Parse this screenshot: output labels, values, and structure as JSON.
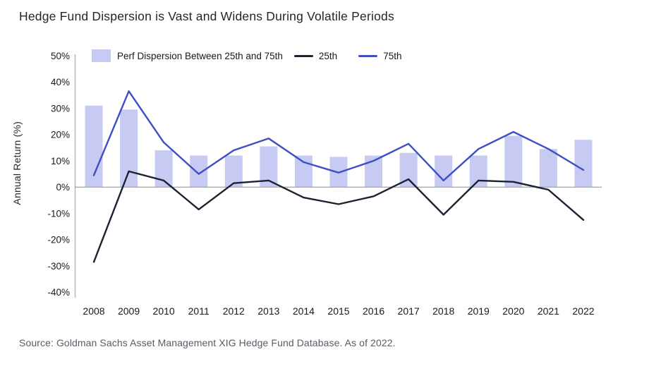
{
  "title": "Hedge Fund Dispersion is Vast and Widens During Volatile Periods",
  "source": "Source: Goldman Sachs Asset Management XIG Hedge Fund Database. As of 2022.",
  "legend": {
    "dispersion_label": "Perf Dispersion Between 25th and 75th",
    "p25_label": "25th",
    "p75_label": "75th"
  },
  "colors": {
    "bar": "#c7cbf3",
    "line_25": "#1b2230",
    "line_75": "#3e4fc5",
    "axis_line": "#b3b3b3",
    "zero_line": "#8f8f8f",
    "tick_text": "#17191e",
    "title_text": "#24262b",
    "source_text": "#575d64"
  },
  "chart_data": {
    "type": "bar",
    "title": "Hedge Fund Dispersion is Vast and Widens During Volatile Periods",
    "xlabel": "",
    "ylabel": "Annual Return (%)",
    "ylim": [
      -40,
      50
    ],
    "grid": "zero-line-only",
    "legend_position": "top",
    "yticks": [
      {
        "value": 50,
        "label": "50%"
      },
      {
        "value": 40,
        "label": "40%"
      },
      {
        "value": 30,
        "label": "30%"
      },
      {
        "value": 20,
        "label": "20%"
      },
      {
        "value": 10,
        "label": "10%"
      },
      {
        "value": 0,
        "label": "0%"
      },
      {
        "value": -10,
        "label": "-10%"
      },
      {
        "value": -20,
        "label": "-20%"
      },
      {
        "value": -30,
        "label": "-30%"
      },
      {
        "value": -40,
        "label": "-40%"
      }
    ],
    "categories": [
      "2008",
      "2009",
      "2010",
      "2011",
      "2012",
      "2013",
      "2014",
      "2015",
      "2016",
      "2017",
      "2018",
      "2019",
      "2020",
      "2021",
      "2022"
    ],
    "series": [
      {
        "name": "Perf Dispersion Between 25th and 75th",
        "kind": "bar",
        "values": [
          31,
          29.5,
          14,
          12,
          12,
          15.5,
          12,
          11.5,
          12,
          13,
          12,
          12,
          19.5,
          14.5,
          18
        ]
      },
      {
        "name": "25th",
        "kind": "line",
        "values": [
          -28.5,
          6,
          2.5,
          -8.5,
          1.5,
          2.5,
          -4,
          -6.5,
          -3.5,
          3,
          -10.5,
          2.5,
          2,
          -1,
          -12.5
        ]
      },
      {
        "name": "75th",
        "kind": "line",
        "values": [
          4.5,
          36.5,
          17,
          5,
          14,
          18.5,
          9.5,
          5.5,
          10,
          16.5,
          2.5,
          14.5,
          21,
          14.5,
          6.5
        ]
      }
    ]
  }
}
